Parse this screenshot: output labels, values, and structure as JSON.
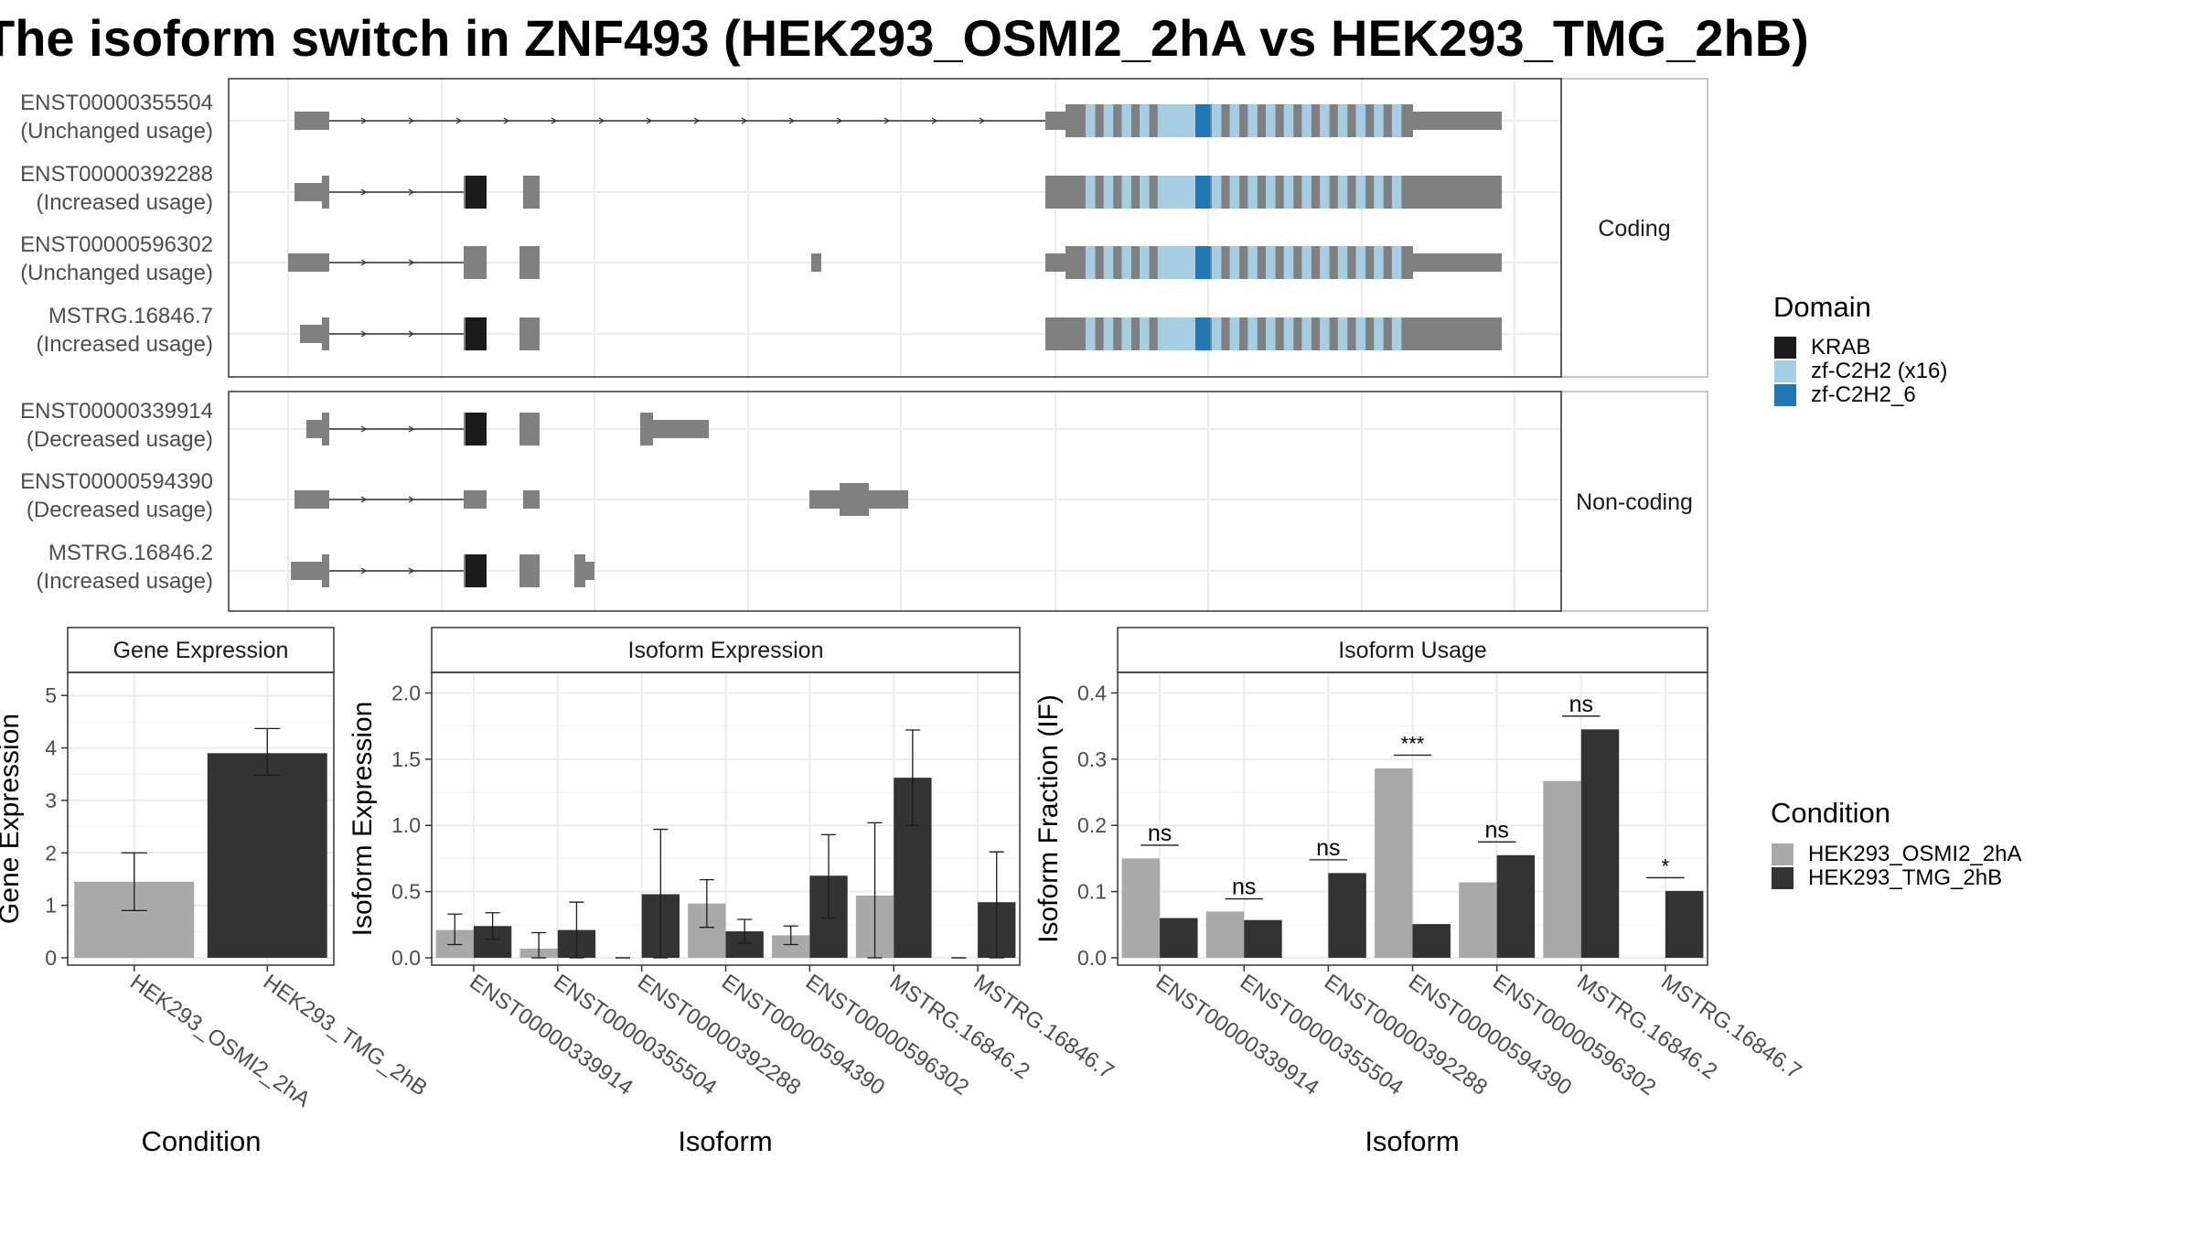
{
  "title": "The isoform switch in ZNF493 (HEK293_OSMI2_2hA vs HEK293_TMG_2hB)",
  "colors": {
    "exon": "#808080",
    "krab": "#1a1a1a",
    "zf_c2h2": "#a6cee3",
    "zf_c2h2_6": "#1f78b4",
    "condition_a": "#a9a9a9",
    "condition_b": "#333333",
    "strip_fill": "#ffffff",
    "grid": "#ebebeb"
  },
  "transcript_plot": {
    "facets": [
      {
        "label": "Coding",
        "transcripts": [
          {
            "id": "ENST00000355504",
            "usage": "(Unchanged usage)"
          },
          {
            "id": "ENST00000392288",
            "usage": "(Increased usage)"
          },
          {
            "id": "ENST00000596302",
            "usage": "(Unchanged usage)"
          },
          {
            "id": "MSTRG.16846.7",
            "usage": "(Increased usage)"
          }
        ]
      },
      {
        "label": "Non-coding",
        "transcripts": [
          {
            "id": "ENST00000339914",
            "usage": "(Decreased usage)"
          },
          {
            "id": "ENST00000594390",
            "usage": "(Decreased usage)"
          },
          {
            "id": "MSTRG.16846.2",
            "usage": "(Increased usage)"
          }
        ]
      }
    ]
  },
  "legends": {
    "domain": {
      "title": "Domain",
      "items": [
        {
          "label": "KRAB",
          "color": "#1a1a1a"
        },
        {
          "label": "zf-C2H2 (x16)",
          "color": "#a6cee3"
        },
        {
          "label": "zf-C2H2_6",
          "color": "#1f78b4"
        }
      ]
    },
    "condition": {
      "title": "Condition",
      "items": [
        {
          "label": "HEK293_OSMI2_2hA",
          "color": "#a9a9a9"
        },
        {
          "label": "HEK293_TMG_2hB",
          "color": "#333333"
        }
      ]
    }
  },
  "chart_data": [
    {
      "type": "bar",
      "title": "Gene Expression",
      "xlabel": "Condition",
      "ylabel": "Gene Expression",
      "ylim": [
        0,
        5.3
      ],
      "yticks": [
        0,
        1,
        2,
        3,
        4,
        5
      ],
      "categories": [
        "HEK293_OSMI2_2hA",
        "HEK293_TMG_2hB"
      ],
      "values": [
        1.45,
        3.9
      ],
      "errors": [
        [
          0.9,
          2.0
        ],
        [
          3.48,
          4.37
        ]
      ]
    },
    {
      "type": "bar",
      "title": "Isoform Expression",
      "xlabel": "Isoform",
      "ylabel": "Isoform Expression",
      "ylim": [
        0,
        2.1
      ],
      "yticks": [
        0.0,
        0.5,
        1.0,
        1.5,
        2.0
      ],
      "categories": [
        "ENST00000339914",
        "ENST00000355504",
        "ENST00000392288",
        "ENST00000594390",
        "ENST00000596302",
        "MSTRG.16846.2",
        "MSTRG.16846.7"
      ],
      "series": [
        {
          "name": "HEK293_OSMI2_2hA",
          "values": [
            0.21,
            0.07,
            0.0,
            0.41,
            0.17,
            0.47,
            0.0
          ],
          "errors": [
            [
              0.1,
              0.33
            ],
            [
              0.0,
              0.19
            ],
            [
              0.0,
              0.0
            ],
            [
              0.23,
              0.59
            ],
            [
              0.1,
              0.24
            ],
            [
              0.0,
              1.02
            ],
            [
              0.0,
              0.0
            ]
          ]
        },
        {
          "name": "HEK293_TMG_2hB",
          "values": [
            0.24,
            0.21,
            0.48,
            0.2,
            0.62,
            1.36,
            0.42
          ],
          "errors": [
            [
              0.14,
              0.34
            ],
            [
              0.0,
              0.42
            ],
            [
              0.0,
              0.97
            ],
            [
              0.11,
              0.29
            ],
            [
              0.3,
              0.93
            ],
            [
              1.0,
              1.72
            ],
            [
              0.0,
              0.8
            ]
          ]
        }
      ]
    },
    {
      "type": "bar",
      "title": "Isoform Usage",
      "xlabel": "Isoform",
      "ylabel": "Isoform Fraction (IF)",
      "ylim": [
        0,
        0.42
      ],
      "yticks": [
        0.0,
        0.1,
        0.2,
        0.3,
        0.4
      ],
      "categories": [
        "ENST00000339914",
        "ENST00000355504",
        "ENST00000392288",
        "ENST00000594390",
        "ENST00000596302",
        "MSTRG.16846.2",
        "MSTRG.16846.7"
      ],
      "series": [
        {
          "name": "HEK293_OSMI2_2hA",
          "values": [
            0.15,
            0.07,
            0.0,
            0.286,
            0.114,
            0.267,
            0.0
          ]
        },
        {
          "name": "HEK293_TMG_2hB",
          "values": [
            0.06,
            0.057,
            0.128,
            0.051,
            0.155,
            0.345,
            0.101
          ]
        }
      ],
      "significance": [
        {
          "category": "ENST00000339914",
          "label": "ns",
          "level": 0.17
        },
        {
          "category": "ENST00000355504",
          "label": "ns",
          "level": 0.089
        },
        {
          "category": "ENST00000392288",
          "label": "ns",
          "level": 0.148
        },
        {
          "category": "ENST00000594390",
          "label": "***",
          "level": 0.306
        },
        {
          "category": "ENST00000596302",
          "label": "ns",
          "level": 0.175
        },
        {
          "category": "MSTRG.16846.2",
          "label": "ns",
          "level": 0.365
        },
        {
          "category": "MSTRG.16846.7",
          "label": "*",
          "level": 0.121
        }
      ]
    }
  ]
}
